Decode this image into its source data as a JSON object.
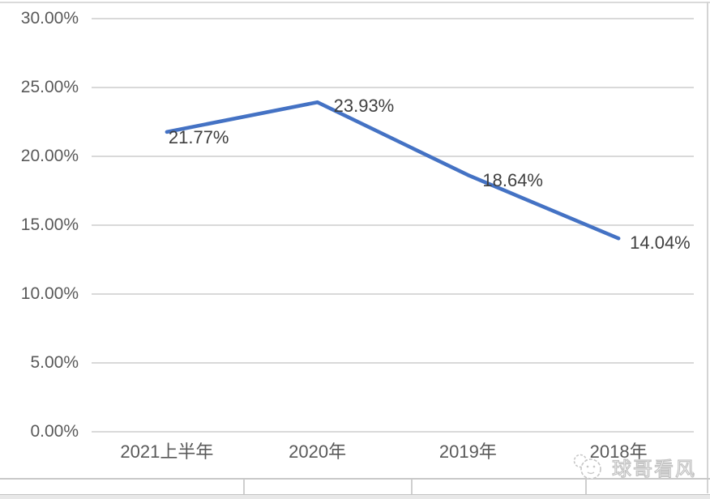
{
  "page": {
    "background": "#ffffff",
    "watermark": {
      "text": "球哥看风",
      "icon": "mascot-face-icon"
    }
  },
  "chart_data": {
    "type": "line",
    "title": "",
    "categories": [
      "2021上半年",
      "2020年",
      "2019年",
      "2018年"
    ],
    "series": [
      {
        "name": "",
        "values": [
          21.77,
          23.93,
          18.64,
          14.04
        ],
        "labels": [
          "21.77%",
          "23.93%",
          "18.64%",
          "14.04%"
        ],
        "color": "#4472C4"
      }
    ],
    "y_axis": {
      "min": 0,
      "max": 30,
      "step": 5,
      "ticks": [
        "0.00%",
        "5.00%",
        "10.00%",
        "15.00%",
        "20.00%",
        "25.00%",
        "30.00%"
      ]
    },
    "x_axis_label": "",
    "y_axis_label": "",
    "grid": true,
    "legend_position": "none",
    "gridline_color": "#D9D9D9",
    "axis_label_color": "#595959",
    "data_label_color": "#3F3F3F"
  }
}
